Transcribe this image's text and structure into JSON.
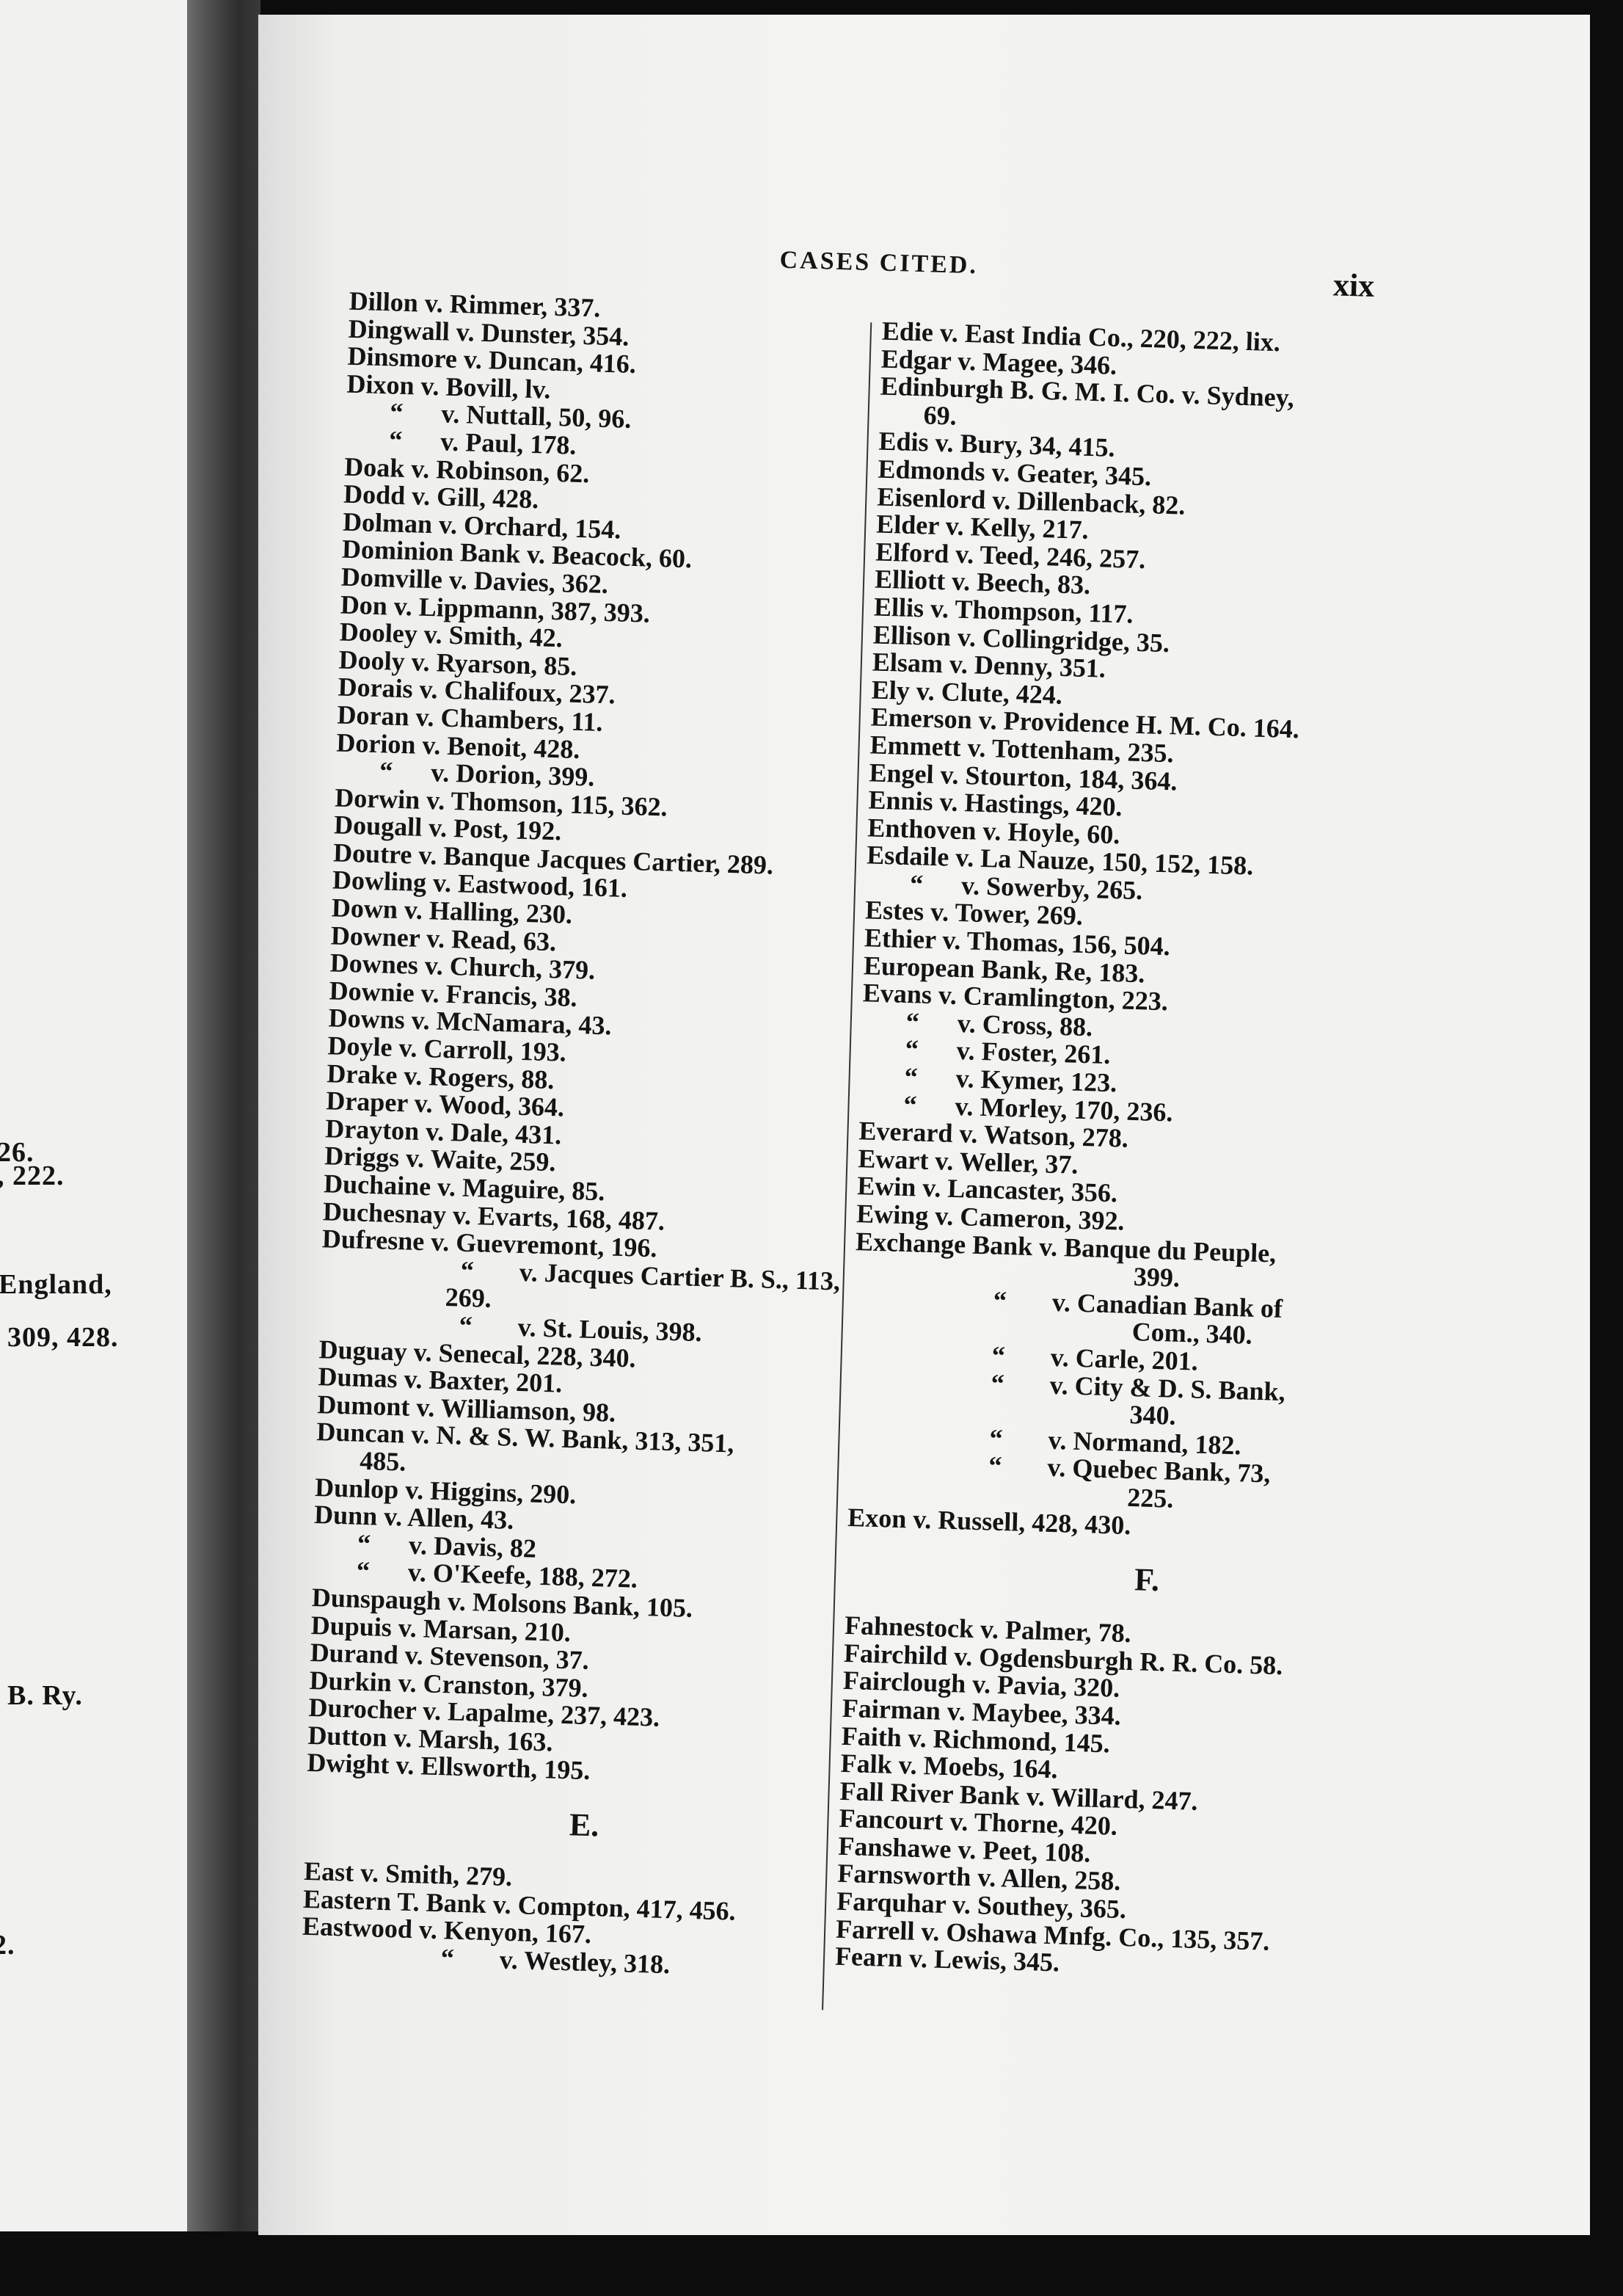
{
  "left_page_fragments": [
    "26.",
    ", 222.",
    "England,",
    "309, 428.",
    ".",
    ".",
    "B. Ry.",
    "2."
  ],
  "header": {
    "title": "CASES CITED.",
    "page_number": "xix"
  },
  "left_column": [
    {
      "type": "entry",
      "text": "Dillon v. Rimmer, 337."
    },
    {
      "type": "entry",
      "text": "Dingwall v. Dunster, 354."
    },
    {
      "type": "entry",
      "text": "Dinsmore v. Duncan, 416."
    },
    {
      "type": "entry",
      "text": "Dixon v. Bovill, lv."
    },
    {
      "type": "ditto",
      "text": "v. Nuttall, 50, 96."
    },
    {
      "type": "ditto",
      "text": "v. Paul, 178."
    },
    {
      "type": "entry",
      "text": "Doak v. Robinson, 62."
    },
    {
      "type": "entry",
      "text": "Dodd v. Gill, 428."
    },
    {
      "type": "entry",
      "text": "Dolman v. Orchard, 154."
    },
    {
      "type": "entry",
      "text": "Dominion Bank v. Beacock, 60."
    },
    {
      "type": "entry",
      "text": "Domville v. Davies, 362."
    },
    {
      "type": "entry",
      "text": "Don v. Lippmann, 387, 393."
    },
    {
      "type": "entry",
      "text": "Dooley v. Smith, 42."
    },
    {
      "type": "entry",
      "text": "Dooly v. Ryarson, 85."
    },
    {
      "type": "entry",
      "text": "Dorais v. Chalifoux, 237."
    },
    {
      "type": "entry",
      "text": "Doran v. Chambers, 11."
    },
    {
      "type": "entry",
      "text": "Dorion v. Benoit, 428."
    },
    {
      "type": "ditto",
      "text": "v. Dorion, 399."
    },
    {
      "type": "entry",
      "text": "Dorwin v. Thomson, 115, 362."
    },
    {
      "type": "entry",
      "text": "Dougall v. Post, 192."
    },
    {
      "type": "entry",
      "text": "Doutre v. Banque Jacques Cartier, 289."
    },
    {
      "type": "entry",
      "text": "Dowling v. Eastwood, 161."
    },
    {
      "type": "entry",
      "text": "Down v. Halling, 230."
    },
    {
      "type": "entry",
      "text": "Downer v. Read, 63."
    },
    {
      "type": "entry",
      "text": "Downes v. Church, 379."
    },
    {
      "type": "entry",
      "text": "Downie v. Francis, 38."
    },
    {
      "type": "entry",
      "text": "Downs v. McNamara, 43."
    },
    {
      "type": "entry",
      "text": "Doyle v. Carroll, 193."
    },
    {
      "type": "entry",
      "text": "Drake v. Rogers, 88."
    },
    {
      "type": "entry",
      "text": "Draper v. Wood, 364."
    },
    {
      "type": "entry",
      "text": "Drayton v. Dale, 431."
    },
    {
      "type": "entry",
      "text": "Driggs v. Waite, 259."
    },
    {
      "type": "entry",
      "text": "Duchaine v. Maguire, 85."
    },
    {
      "type": "entry",
      "text": "Duchesnay v. Evarts, 168, 487."
    },
    {
      "type": "entry",
      "text": "Dufresne v. Guevremont, 196."
    },
    {
      "type": "ditto-wide",
      "text": "v. Jacques Cartier B. S., 113,"
    },
    {
      "type": "wrap-mid",
      "text": "269."
    },
    {
      "type": "ditto-wide",
      "text": "v. St. Louis, 398."
    },
    {
      "type": "entry",
      "text": "Duguay v. Senecal, 228, 340."
    },
    {
      "type": "entry",
      "text": "Dumas v. Baxter, 201."
    },
    {
      "type": "entry",
      "text": "Dumont v. Williamson, 98."
    },
    {
      "type": "entry",
      "text": "Duncan v. N. & S. W. Bank, 313, 351,"
    },
    {
      "type": "wrap",
      "text": "485."
    },
    {
      "type": "entry",
      "text": "Dunlop v. Higgins, 290."
    },
    {
      "type": "entry",
      "text": "Dunn v. Allen, 43."
    },
    {
      "type": "ditto",
      "text": "v. Davis, 82"
    },
    {
      "type": "ditto",
      "text": "v. O'Keefe, 188, 272."
    },
    {
      "type": "entry",
      "text": "Dunspaugh v. Molsons Bank, 105."
    },
    {
      "type": "entry",
      "text": "Dupuis v. Marsan, 210."
    },
    {
      "type": "entry",
      "text": "Durand v. Stevenson, 37."
    },
    {
      "type": "entry",
      "text": "Durkin v. Cranston, 379."
    },
    {
      "type": "entry",
      "text": "Durocher v. Lapalme, 237, 423."
    },
    {
      "type": "entry",
      "text": "Dutton v. Marsh, 163."
    },
    {
      "type": "entry",
      "text": "Dwight v. Ellsworth, 195."
    },
    {
      "type": "section",
      "text": "E."
    },
    {
      "type": "entry",
      "text": "East v. Smith, 279."
    },
    {
      "type": "entry",
      "text": "Eastern T. Bank v. Compton, 417, 456."
    },
    {
      "type": "entry",
      "text": "Eastwood v. Kenyon, 167."
    },
    {
      "type": "ditto-wide",
      "text": "v. Westley, 318."
    }
  ],
  "right_column": [
    {
      "type": "entry",
      "text": "Edie v. East India Co., 220, 222, lix."
    },
    {
      "type": "entry",
      "text": "Edgar v. Magee, 346."
    },
    {
      "type": "entry",
      "text": "Edinburgh B. G. M. I. Co. v. Sydney,"
    },
    {
      "type": "wrap",
      "text": "69."
    },
    {
      "type": "entry",
      "text": "Edis v. Bury, 34, 415."
    },
    {
      "type": "entry",
      "text": "Edmonds v. Geater, 345."
    },
    {
      "type": "entry",
      "text": "Eisenlord v. Dillenback, 82."
    },
    {
      "type": "entry",
      "text": "Elder v. Kelly, 217."
    },
    {
      "type": "entry",
      "text": "Elford v. Teed, 246, 257."
    },
    {
      "type": "entry",
      "text": "Elliott v. Beech, 83."
    },
    {
      "type": "entry",
      "text": "Ellis v. Thompson, 117."
    },
    {
      "type": "entry",
      "text": "Ellison v. Collingridge, 35."
    },
    {
      "type": "entry",
      "text": "Elsam v. Denny, 351."
    },
    {
      "type": "entry",
      "text": "Ely v. Clute, 424."
    },
    {
      "type": "entry",
      "text": "Emerson v. Providence H. M. Co. 164."
    },
    {
      "type": "entry",
      "text": "Emmett v. Tottenham, 235."
    },
    {
      "type": "entry",
      "text": "Engel v. Stourton, 184, 364."
    },
    {
      "type": "entry",
      "text": "Ennis v. Hastings, 420."
    },
    {
      "type": "entry",
      "text": "Enthoven v. Hoyle, 60."
    },
    {
      "type": "entry",
      "text": "Esdaile v. La Nauze, 150, 152, 158."
    },
    {
      "type": "ditto",
      "text": "v. Sowerby, 265."
    },
    {
      "type": "entry",
      "text": "Estes v. Tower, 269."
    },
    {
      "type": "entry",
      "text": "Ethier v. Thomas, 156, 504."
    },
    {
      "type": "entry",
      "text": "European Bank, Re, 183."
    },
    {
      "type": "entry",
      "text": "Evans v. Cramlington, 223."
    },
    {
      "type": "ditto",
      "text": "v. Cross, 88."
    },
    {
      "type": "ditto",
      "text": "v. Foster, 261."
    },
    {
      "type": "ditto",
      "text": "v. Kymer, 123."
    },
    {
      "type": "ditto",
      "text": "v. Morley, 170, 236."
    },
    {
      "type": "entry",
      "text": "Everard v. Watson, 278."
    },
    {
      "type": "entry",
      "text": "Ewart v. Weller, 37."
    },
    {
      "type": "entry",
      "text": "Ewin v. Lancaster, 356."
    },
    {
      "type": "entry",
      "text": "Ewing v. Cameron, 392."
    },
    {
      "type": "entry",
      "text": "Exchange Bank v. Banque du Peuple,"
    },
    {
      "type": "wrap-wide",
      "text": "399."
    },
    {
      "type": "ditto-wide",
      "text": "v. Canadian Bank of"
    },
    {
      "type": "wrap-wide",
      "text": "Com., 340."
    },
    {
      "type": "ditto-wide",
      "text": "v. Carle, 201."
    },
    {
      "type": "ditto-wide",
      "text": "v. City & D. S. Bank,"
    },
    {
      "type": "wrap-wide",
      "text": "340."
    },
    {
      "type": "ditto-wide",
      "text": "v. Normand, 182."
    },
    {
      "type": "ditto-wide",
      "text": "v. Quebec Bank, 73,"
    },
    {
      "type": "wrap-wide",
      "text": "225."
    },
    {
      "type": "entry",
      "text": "Exon v. Russell, 428, 430."
    },
    {
      "type": "section",
      "text": "F."
    },
    {
      "type": "entry",
      "text": "Fahnestock v. Palmer, 78."
    },
    {
      "type": "entry",
      "text": "Fairchild v. Ogdensburgh R. R. Co. 58."
    },
    {
      "type": "entry",
      "text": "Fairclough v. Pavia, 320."
    },
    {
      "type": "entry",
      "text": "Fairman v. Maybee, 334."
    },
    {
      "type": "entry",
      "text": "Faith v. Richmond, 145."
    },
    {
      "type": "entry",
      "text": "Falk v. Moebs, 164."
    },
    {
      "type": "entry",
      "text": "Fall River Bank v. Willard, 247."
    },
    {
      "type": "entry",
      "text": "Fancourt v. Thorne, 420."
    },
    {
      "type": "entry",
      "text": "Fanshawe v. Peet, 108."
    },
    {
      "type": "entry",
      "text": "Farnsworth v. Allen, 258."
    },
    {
      "type": "entry",
      "text": "Farquhar v. Southey, 365."
    },
    {
      "type": "entry",
      "text": "Farrell v. Oshawa Mnfg. Co., 135, 357."
    },
    {
      "type": "entry",
      "text": "Fearn v. Lewis, 345."
    }
  ],
  "ditto_mark": "“"
}
